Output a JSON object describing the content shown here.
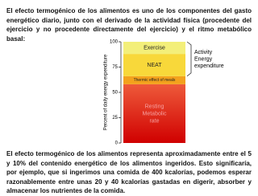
{
  "paragraphs": [
    "El efecto termogénico de los alimentos es uno de los componentes del gasto energético diario, junto con el derivado de la actividad física (procedente del ejercicio y no procedente directamente del ejercicio) y el ritmo metabólico basal:",
    "El efecto termogénico de los alimentos representa aproximadamente entre el 5 y 10% del contenido energético de los alimentos ingeridos. Esto significaría, por ejemplo, que si ingerimos una comida de 400 kcalorías, podemos esperar razonablemente entre unas 20 y 40 kcalorías gastadas en digerir, absorber y almacenar los nutrientes de la comida."
  ],
  "figure": {
    "type": "stacked-bar",
    "ylabel": "Percent of daily energy expenditure",
    "ylim": [
      0,
      100
    ],
    "yticks": [
      0,
      25,
      50,
      75,
      100
    ],
    "segments": [
      {
        "name": [
          "Resting",
          "Metabolic",
          "rate"
        ],
        "value": 58,
        "color": "#d21010"
      },
      {
        "name": [
          "Thermic effect of meals"
        ],
        "value": 8,
        "color": "#f3a21d"
      },
      {
        "name": [
          "NEAT"
        ],
        "value": 22,
        "color": "#f8d83a"
      },
      {
        "name": [
          "Exercise"
        ],
        "value": 12,
        "color": "#f3ef7a"
      }
    ],
    "bracket_label": [
      "Activity",
      "Energy",
      "expenditure"
    ]
  }
}
